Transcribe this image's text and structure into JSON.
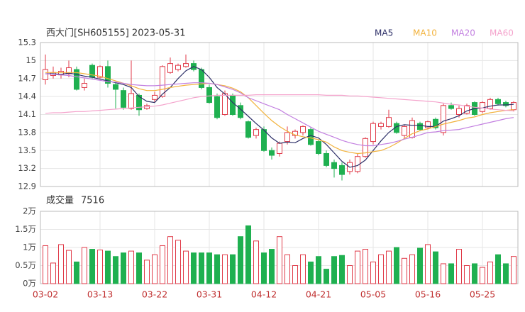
{
  "chart_data": [
    {
      "type": "candlestick",
      "title": "西大门[SH605155] 2023-05-31",
      "categories": [
        "03-02",
        null,
        null,
        null,
        null,
        null,
        null,
        "03-13",
        null,
        null,
        null,
        null,
        null,
        null,
        "03-22",
        null,
        null,
        null,
        null,
        null,
        null,
        "03-31",
        null,
        null,
        null,
        null,
        null,
        null,
        "04-12",
        null,
        null,
        null,
        null,
        null,
        null,
        "04-21",
        null,
        null,
        null,
        null,
        null,
        null,
        "05-05",
        null,
        null,
        null,
        null,
        null,
        null,
        "05-16",
        null,
        null,
        null,
        null,
        null,
        null,
        "05-25",
        null,
        null,
        null,
        null
      ],
      "open": [
        14.68,
        14.75,
        14.76,
        14.78,
        14.85,
        14.55,
        14.92,
        14.72,
        14.9,
        14.6,
        14.5,
        14.2,
        14.42,
        14.2,
        14.35,
        14.4,
        14.8,
        14.85,
        14.9,
        14.95,
        14.85,
        14.55,
        14.4,
        14.1,
        14.42,
        14.25,
        13.98,
        13.75,
        13.85,
        13.5,
        13.45,
        13.65,
        13.75,
        13.8,
        13.85,
        13.65,
        13.45,
        13.3,
        13.25,
        13.15,
        13.15,
        13.4,
        13.65,
        13.9,
        13.9,
        13.95,
        13.75,
        13.72,
        13.95,
        13.88,
        14.02,
        13.8,
        14.25,
        14.1,
        14.12,
        14.3,
        14.15,
        14.2,
        14.35,
        14.3,
        14.18
      ],
      "high": [
        15.1,
        14.9,
        14.88,
        15.0,
        14.9,
        14.7,
        14.95,
        14.92,
        15.0,
        14.65,
        14.55,
        15.0,
        14.45,
        14.28,
        14.48,
        14.92,
        15.05,
        14.95,
        15.1,
        15.0,
        14.88,
        14.6,
        14.45,
        14.5,
        14.45,
        14.3,
        14.0,
        13.88,
        13.9,
        13.55,
        13.65,
        13.9,
        13.85,
        13.92,
        13.88,
        13.68,
        13.5,
        13.35,
        13.3,
        13.35,
        13.45,
        13.72,
        13.98,
        13.98,
        14.18,
        13.98,
        13.92,
        14.05,
        13.98,
        14.0,
        14.05,
        14.28,
        14.3,
        14.25,
        14.28,
        14.32,
        14.32,
        14.38,
        14.38,
        14.33,
        14.32
      ],
      "low": [
        14.6,
        14.7,
        14.7,
        14.72,
        14.5,
        14.5,
        14.7,
        14.7,
        14.55,
        14.2,
        14.18,
        14.18,
        14.08,
        14.18,
        14.3,
        14.38,
        14.78,
        14.82,
        14.88,
        14.82,
        14.52,
        14.28,
        14.02,
        14.08,
        14.08,
        14.02,
        13.7,
        13.7,
        13.48,
        13.35,
        13.4,
        13.6,
        13.7,
        13.75,
        13.58,
        13.42,
        13.22,
        13.05,
        13.0,
        13.1,
        13.12,
        13.38,
        13.6,
        13.85,
        13.88,
        13.78,
        13.7,
        13.7,
        13.82,
        13.85,
        13.85,
        13.75,
        14.18,
        14.05,
        14.1,
        14.08,
        14.12,
        14.18,
        14.25,
        14.22,
        14.15
      ],
      "close": [
        14.85,
        14.8,
        14.82,
        14.88,
        14.52,
        14.62,
        14.72,
        14.9,
        14.62,
        14.52,
        14.22,
        14.45,
        14.18,
        14.25,
        14.42,
        14.9,
        14.95,
        14.92,
        14.95,
        14.85,
        14.55,
        14.3,
        14.05,
        14.45,
        14.1,
        14.05,
        13.72,
        13.85,
        13.5,
        13.42,
        13.62,
        13.8,
        13.82,
        13.9,
        13.6,
        13.45,
        13.25,
        13.2,
        13.1,
        13.3,
        13.4,
        13.7,
        13.95,
        13.95,
        14.05,
        13.8,
        13.9,
        14.0,
        13.85,
        13.98,
        13.88,
        14.25,
        14.2,
        14.2,
        14.25,
        14.1,
        14.3,
        14.35,
        14.28,
        14.25,
        14.3
      ],
      "up_color": "#e03a48",
      "down_color": "#1fb050",
      "series": [
        {
          "name": "MA5",
          "color": "#2e3068",
          "values": [
            14.78,
            14.78,
            14.77,
            14.79,
            14.77,
            14.74,
            14.72,
            14.69,
            14.66,
            14.63,
            14.6,
            14.55,
            14.4,
            14.32,
            14.3,
            14.44,
            14.55,
            14.7,
            14.83,
            14.9,
            14.85,
            14.72,
            14.55,
            14.44,
            14.3,
            14.19,
            14.07,
            13.95,
            13.84,
            13.71,
            13.62,
            13.64,
            13.63,
            13.7,
            13.75,
            13.71,
            13.6,
            13.46,
            13.32,
            13.22,
            13.25,
            13.34,
            13.5,
            13.66,
            13.8,
            13.9,
            13.93,
            13.92,
            13.92,
            13.9,
            13.9,
            13.99,
            14.03,
            14.08,
            14.16,
            14.2,
            14.21,
            14.24,
            14.26,
            14.26,
            14.27
          ]
        },
        {
          "name": "MA10",
          "color": "#f2b23c",
          "values": [
            14.8,
            14.8,
            14.8,
            14.8,
            14.8,
            14.78,
            14.76,
            14.74,
            14.7,
            14.66,
            14.62,
            14.58,
            14.53,
            14.5,
            14.5,
            14.52,
            14.55,
            14.57,
            14.59,
            14.6,
            14.61,
            14.62,
            14.6,
            14.58,
            14.54,
            14.48,
            14.38,
            14.25,
            14.12,
            14.0,
            13.9,
            13.82,
            13.76,
            13.73,
            13.71,
            13.68,
            13.64,
            13.56,
            13.5,
            13.47,
            13.45,
            13.46,
            13.48,
            13.5,
            13.55,
            13.62,
            13.7,
            13.78,
            13.83,
            13.86,
            13.9,
            13.94,
            13.97,
            14.0,
            14.04,
            14.06,
            14.1,
            14.13,
            14.15,
            14.17,
            14.18
          ]
        },
        {
          "name": "MA20",
          "color": "#c27fe0",
          "values": [
            14.78,
            14.77,
            14.76,
            14.75,
            14.73,
            14.71,
            14.69,
            14.67,
            14.65,
            14.64,
            14.62,
            14.6,
            14.59,
            14.58,
            14.58,
            14.59,
            14.6,
            14.61,
            14.62,
            14.63,
            14.63,
            14.62,
            14.6,
            14.56,
            14.52,
            14.46,
            14.38,
            14.33,
            14.28,
            14.23,
            14.18,
            14.1,
            14.03,
            13.96,
            13.89,
            13.82,
            13.77,
            13.72,
            13.67,
            13.63,
            13.6,
            13.58,
            13.58,
            13.6,
            13.62,
            13.65,
            13.69,
            13.72,
            13.76,
            13.8,
            13.81,
            13.83,
            13.84,
            13.85,
            13.88,
            13.91,
            13.94,
            13.97,
            14.0,
            14.03,
            14.05
          ]
        },
        {
          "name": "MA60",
          "color": "#f4a3cc",
          "values": [
            14.12,
            14.13,
            14.13,
            14.14,
            14.15,
            14.15,
            14.16,
            14.17,
            14.18,
            14.19,
            14.2,
            14.21,
            14.22,
            14.23,
            14.24,
            14.26,
            14.29,
            14.32,
            14.35,
            14.38,
            14.4,
            14.41,
            14.42,
            14.42,
            14.42,
            14.42,
            14.42,
            14.43,
            14.43,
            14.43,
            14.43,
            14.43,
            14.43,
            14.43,
            14.43,
            14.43,
            14.42,
            14.42,
            14.42,
            14.41,
            14.41,
            14.4,
            14.39,
            14.38,
            14.37,
            14.36,
            14.35,
            14.34,
            14.33,
            14.32,
            14.31,
            14.29,
            14.27,
            14.26,
            14.24,
            14.22,
            14.21,
            14.19,
            14.18,
            14.17,
            14.16
          ]
        }
      ],
      "ylim": [
        12.9,
        15.3
      ],
      "yticks": [
        15.3,
        15,
        14.7,
        14.4,
        14.1,
        13.8,
        13.5,
        13.2,
        12.9
      ],
      "grid": true
    },
    {
      "type": "bar",
      "title": "成交量",
      "volume_label": "7516",
      "values": [
        1.05,
        0.57,
        1.08,
        0.92,
        0.6,
        1.0,
        0.95,
        0.93,
        0.9,
        0.75,
        0.85,
        0.9,
        0.85,
        0.65,
        0.8,
        1.05,
        1.3,
        1.2,
        0.9,
        0.85,
        0.85,
        0.85,
        0.8,
        0.8,
        0.8,
        1.3,
        1.6,
        1.18,
        0.85,
        0.95,
        1.3,
        0.8,
        0.5,
        0.8,
        0.6,
        0.75,
        0.4,
        0.75,
        0.78,
        0.5,
        0.9,
        0.95,
        0.6,
        0.8,
        0.9,
        1.0,
        0.7,
        0.8,
        0.98,
        1.08,
        0.88,
        0.55,
        0.55,
        0.95,
        0.5,
        0.55,
        0.45,
        0.6,
        0.8,
        0.55,
        0.7516
      ],
      "ylim": [
        0,
        2
      ],
      "yticks": [
        {
          "value": 2,
          "label": "2万"
        },
        {
          "value": 1.5,
          "label": "1.5万"
        },
        {
          "value": 1,
          "label": "1万"
        },
        {
          "value": 0.5,
          "label": "0.5万"
        },
        {
          "value": 0,
          "label": "0万"
        }
      ],
      "grid": true
    }
  ]
}
